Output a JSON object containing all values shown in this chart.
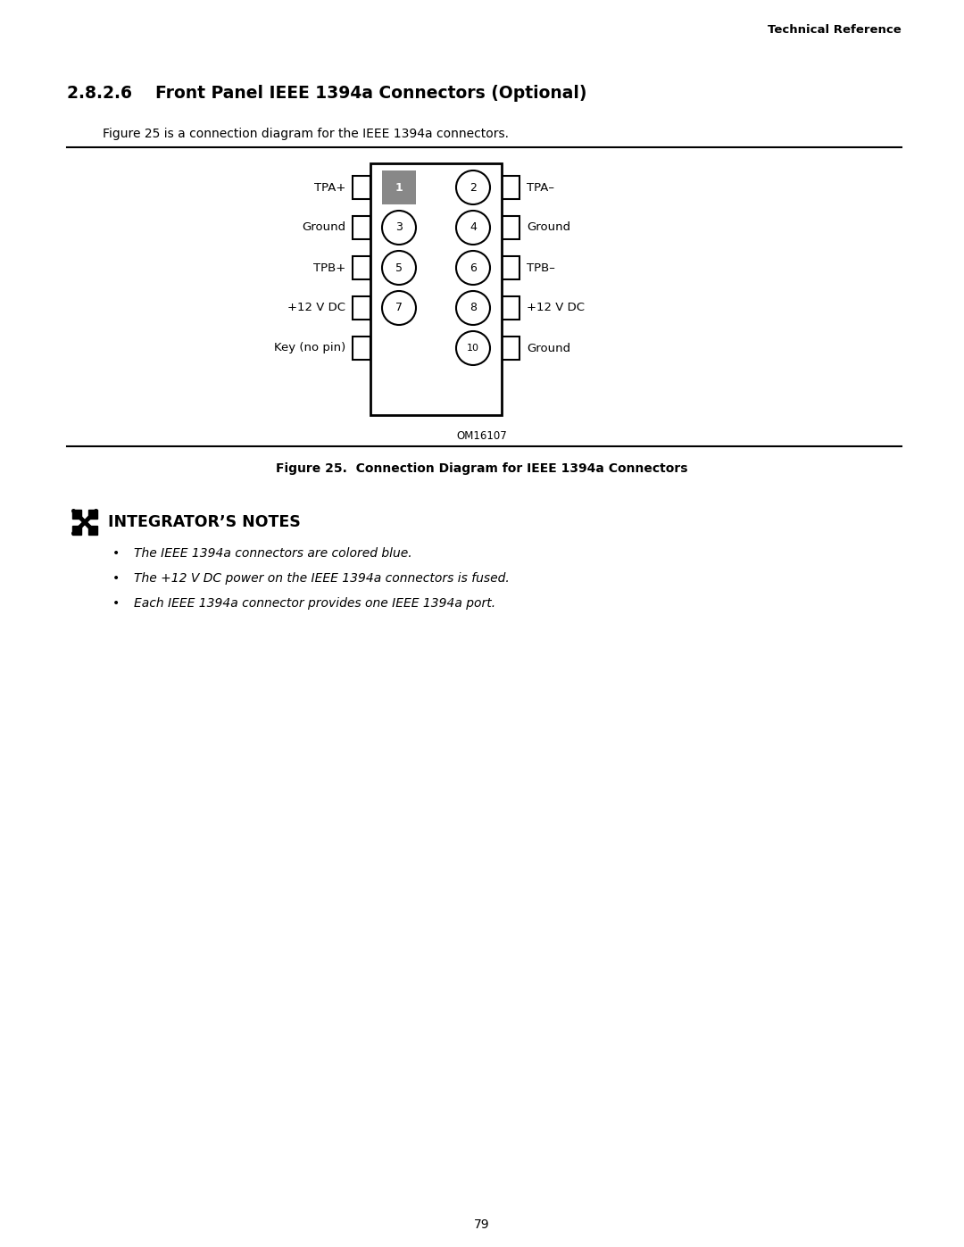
{
  "page_title": "Technical Reference",
  "section_title": "2.8.2.6    Front Panel IEEE 1394a Connectors (Optional)",
  "description": "Figure 25 is a connection diagram for the IEEE 1394a connectors.",
  "figure_caption": "Figure 25.  Connection Diagram for IEEE 1394a Connectors",
  "figure_label": "OM16107",
  "left_labels": [
    "TPA+",
    "Ground",
    "TPB+",
    "+12 V DC",
    "Key (no pin)"
  ],
  "right_labels": [
    "TPA–",
    "Ground",
    "TPB–",
    "+12 V DC",
    "Ground"
  ],
  "pin_numbers": [
    "1",
    "2",
    "3",
    "4",
    "5",
    "6",
    "7",
    "8",
    "",
    "10"
  ],
  "pin1_filled": true,
  "integrator_notes_title": "INTEGRATOR’S NOTES",
  "integrator_notes": [
    "The IEEE 1394a connectors are colored blue.",
    "The +12 V DC power on the IEEE 1394a connectors is fused.",
    "Each IEEE 1394a connector provides one IEEE 1394a port."
  ],
  "page_number": "79",
  "bg_color": "#ffffff",
  "text_color": "#000000",
  "pin1_fill_color": "#888888",
  "pin_outline_color": "#000000"
}
